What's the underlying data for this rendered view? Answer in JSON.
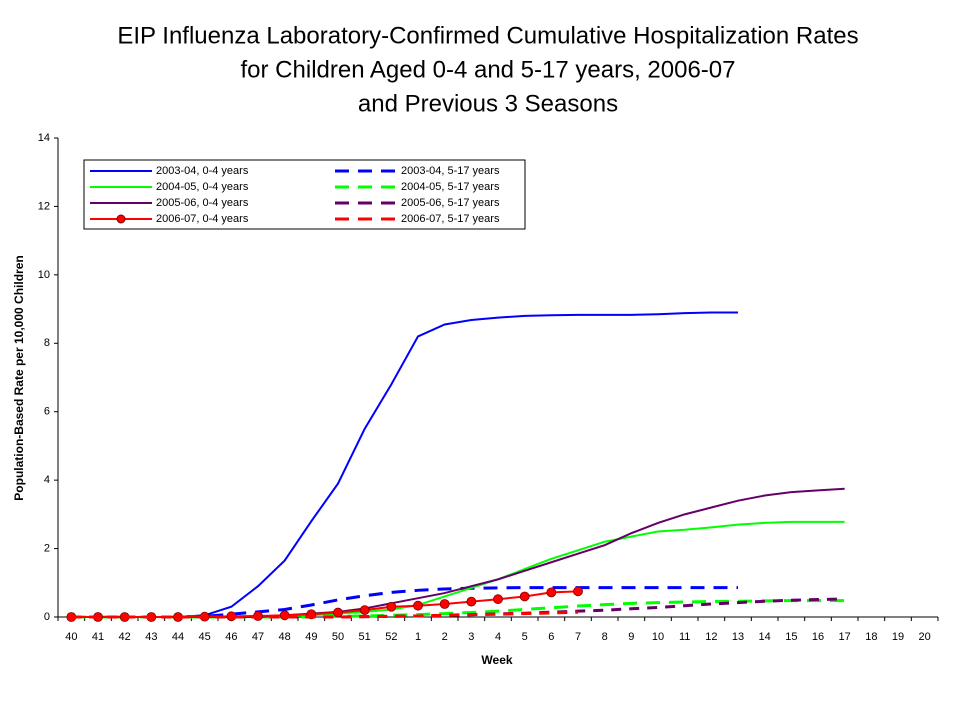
{
  "chart_data": {
    "type": "line",
    "title": [
      "EIP Influenza Laboratory-Confirmed Cumulative Hospitalization Rates",
      "for Children Aged 0-4 and 5-17 years, 2006-07",
      "and Previous 3 Seasons"
    ],
    "x_label": "Week",
    "y_label": "Population-Based Rate per 10,000 Children",
    "categories": [
      "40",
      "41",
      "42",
      "43",
      "44",
      "45",
      "46",
      "47",
      "48",
      "49",
      "50",
      "51",
      "52",
      "1",
      "2",
      "3",
      "4",
      "5",
      "6",
      "7",
      "8",
      "9",
      "10",
      "11",
      "12",
      "13",
      "14",
      "15",
      "16",
      "17",
      "18",
      "19",
      "20"
    ],
    "ylim": [
      0,
      14
    ],
    "yticks": [
      0,
      2,
      4,
      6,
      8,
      10,
      12,
      14
    ],
    "series": [
      {
        "name": "2003-04, 0-4  years",
        "color": "#0000ff",
        "dash": false,
        "marker": false,
        "values": [
          0,
          0,
          0,
          0,
          0,
          0.05,
          0.3,
          0.9,
          1.65,
          2.8,
          3.9,
          5.5,
          6.8,
          8.2,
          8.55,
          8.68,
          8.75,
          8.8,
          8.82,
          8.83,
          8.83,
          8.83,
          8.85,
          8.88,
          8.9,
          8.9,
          null,
          null,
          null,
          null,
          null,
          null,
          null
        ]
      },
      {
        "name": "2003-04, 5-17 years",
        "color": "#0000ff",
        "dash": true,
        "marker": false,
        "values": [
          0,
          0,
          0,
          0,
          0,
          0.02,
          0.08,
          0.15,
          0.22,
          0.35,
          0.5,
          0.62,
          0.72,
          0.78,
          0.82,
          0.84,
          0.85,
          0.86,
          0.86,
          0.86,
          0.86,
          0.86,
          0.86,
          0.86,
          0.86,
          0.86,
          null,
          null,
          null,
          null,
          null,
          null,
          null
        ]
      },
      {
        "name": "2004-05, 0-4  years",
        "color": "#00ff00",
        "dash": false,
        "marker": false,
        "values": [
          0,
          0,
          0,
          0,
          0,
          0,
          0,
          0,
          0.02,
          0.05,
          0.1,
          0.15,
          0.22,
          0.35,
          0.6,
          0.85,
          1.1,
          1.4,
          1.7,
          1.95,
          2.2,
          2.35,
          2.5,
          2.55,
          2.62,
          2.7,
          2.75,
          2.78,
          2.78,
          2.78,
          null,
          null,
          null
        ]
      },
      {
        "name": "2004-05, 5-17 years",
        "color": "#00ff00",
        "dash": true,
        "marker": false,
        "values": [
          0,
          0,
          0,
          0,
          0,
          0,
          0,
          0,
          0,
          0,
          0.02,
          0.03,
          0.05,
          0.07,
          0.1,
          0.13,
          0.17,
          0.22,
          0.27,
          0.32,
          0.36,
          0.4,
          0.42,
          0.44,
          0.45,
          0.46,
          0.47,
          0.48,
          0.48,
          0.48,
          null,
          null,
          null
        ]
      },
      {
        "name": "2005-06, 0-4  years",
        "color": "#660066",
        "dash": false,
        "marker": false,
        "values": [
          0,
          0,
          0,
          0,
          0,
          0,
          0,
          0,
          0.05,
          0.1,
          0.15,
          0.25,
          0.4,
          0.55,
          0.7,
          0.9,
          1.1,
          1.35,
          1.6,
          1.85,
          2.1,
          2.45,
          2.75,
          3.0,
          3.2,
          3.4,
          3.55,
          3.65,
          3.7,
          3.75,
          null,
          null,
          null
        ]
      },
      {
        "name": "2005-06, 5-17 years",
        "color": "#660066",
        "dash": true,
        "marker": false,
        "values": [
          0,
          0,
          0,
          0,
          0,
          0,
          0,
          0,
          0,
          0,
          0,
          0.01,
          0.02,
          0.03,
          0.05,
          0.07,
          0.09,
          0.11,
          0.14,
          0.17,
          0.2,
          0.24,
          0.28,
          0.33,
          0.38,
          0.42,
          0.46,
          0.49,
          0.51,
          0.53,
          null,
          null,
          null
        ]
      },
      {
        "name": "2006-07, 0-4  years",
        "color": "#ff0000",
        "dash": false,
        "marker": true,
        "values": [
          0,
          0,
          0,
          0,
          0,
          0.01,
          0.02,
          0.03,
          0.05,
          0.08,
          0.13,
          0.2,
          0.3,
          0.33,
          0.38,
          0.45,
          0.52,
          0.6,
          0.72,
          0.75,
          null,
          null,
          null,
          null,
          null,
          null,
          null,
          null,
          null,
          null,
          null,
          null,
          null
        ]
      },
      {
        "name": "2006-07, 5-17 years",
        "color": "#ff0000",
        "dash": true,
        "marker": false,
        "values": [
          0,
          0,
          0,
          0,
          0,
          0,
          0,
          0,
          0,
          0,
          0,
          0.01,
          0.02,
          0.03,
          0.05,
          0.07,
          0.08,
          0.1,
          0.12,
          0.14,
          null,
          null,
          null,
          null,
          null,
          null,
          null,
          null,
          null,
          null,
          null,
          null,
          null
        ]
      }
    ]
  }
}
